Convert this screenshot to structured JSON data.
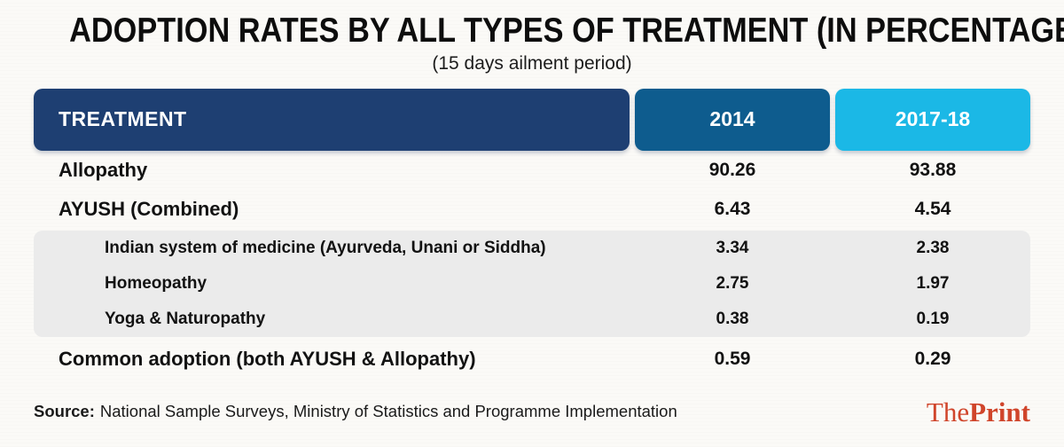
{
  "title": "ADOPTION RATES BY ALL TYPES OF TREATMENT (IN PERCENTAGE)",
  "subtitle": "(15 days ailment period)",
  "table": {
    "header": {
      "treatment": "TREATMENT",
      "col_2014": "2014",
      "col_2017": "2017-18"
    },
    "rows": [
      {
        "label": "Allopathy",
        "v2014": "90.26",
        "v2017": "93.88"
      },
      {
        "label": "AYUSH (Combined)",
        "v2014": "6.43",
        "v2017": "4.54"
      },
      {
        "label": "Indian system of medicine (Ayurveda, Unani or Siddha)",
        "v2014": "3.34",
        "v2017": "2.38"
      },
      {
        "label": "Homeopathy",
        "v2014": "2.75",
        "v2017": "1.97"
      },
      {
        "label": "Yoga & Naturopathy",
        "v2014": "0.38",
        "v2017": "0.19"
      },
      {
        "label": "Common adoption (both AYUSH & Allopathy)",
        "v2014": "0.59",
        "v2017": "0.29"
      }
    ]
  },
  "footer": {
    "source_label": "Source:",
    "source_text": "National Sample Surveys, Ministry of Statistics and Programme Implementation",
    "brand": {
      "the": "The",
      "print": "Print"
    }
  },
  "colors": {
    "background": "#fbfaf7",
    "header_treatment": "#1e3f72",
    "header_2014": "#0e5c8e",
    "header_2017": "#1bb8e6",
    "subrow_band": "#ebebeb",
    "text": "#121212",
    "brand_red": "#d0452b"
  },
  "chart_data": {
    "type": "table",
    "title": "ADOPTION RATES BY ALL TYPES OF TREATMENT (IN PERCENTAGE)",
    "subtitle": "(15 days ailment period)",
    "columns": [
      "TREATMENT",
      "2014",
      "2017-18"
    ],
    "rows": [
      [
        "Allopathy",
        90.26,
        93.88
      ],
      [
        "AYUSH (Combined)",
        6.43,
        4.54
      ],
      [
        "Indian system of medicine (Ayurveda, Unani or Siddha)",
        3.34,
        2.38
      ],
      [
        "Homeopathy",
        2.75,
        1.97
      ],
      [
        "Yoga & Naturopathy",
        0.38,
        0.19
      ],
      [
        "Common adoption (both AYUSH & Allopathy)",
        0.59,
        0.29
      ]
    ],
    "layout_hints": "Rows 3-5 are indented AYUSH sub-categories displayed on a grey rounded band; values are percentages",
    "source": "National Sample Surveys, Ministry of Statistics and Programme Implementation"
  }
}
